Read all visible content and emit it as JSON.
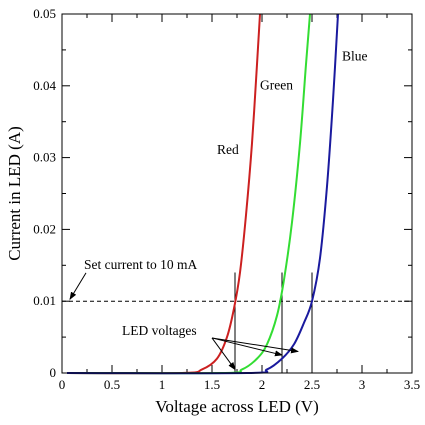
{
  "chart_data": {
    "type": "line",
    "title": "",
    "xlabel": "Voltage across LED (V)",
    "ylabel": "Current in LED (A)",
    "xlim": [
      0,
      3.5
    ],
    "ylim": [
      0,
      0.05
    ],
    "x_ticks": [
      "0",
      "0.5",
      "1",
      "1.5",
      "2",
      "2.5",
      "3",
      "3.5"
    ],
    "y_ticks": [
      "0",
      "0.01",
      "0.02",
      "0.03",
      "0.04",
      "0.05"
    ],
    "grid": false,
    "series": [
      {
        "name": "Red",
        "color": "#cc2020",
        "x": [
          1.2,
          1.4,
          1.55,
          1.65,
          1.72,
          1.78,
          1.84,
          1.9,
          1.95,
          1.98
        ],
        "y": [
          0.0,
          0.0005,
          0.002,
          0.005,
          0.009,
          0.014,
          0.022,
          0.032,
          0.043,
          0.05
        ]
      },
      {
        "name": "Green",
        "color": "#33dd33",
        "x": [
          1.6,
          1.8,
          1.95,
          2.05,
          2.15,
          2.22,
          2.3,
          2.38,
          2.44,
          2.48
        ],
        "y": [
          0.0,
          0.0005,
          0.002,
          0.004,
          0.008,
          0.013,
          0.021,
          0.032,
          0.043,
          0.05
        ]
      },
      {
        "name": "Blue",
        "color": "#1a1a9e",
        "x": [
          1.85,
          2.05,
          2.2,
          2.32,
          2.42,
          2.5,
          2.58,
          2.65,
          2.71,
          2.76
        ],
        "y": [
          0.0,
          0.0005,
          0.002,
          0.004,
          0.007,
          0.01,
          0.016,
          0.026,
          0.038,
          0.05
        ]
      }
    ],
    "reference_line": {
      "y": 0.01,
      "style": "dashed",
      "label": "Set current to 10 mA",
      "arrow_to_x": 0.05
    },
    "marker_lines": {
      "x": [
        1.73,
        2.2,
        2.5
      ],
      "from_y": 0,
      "to_y": 0.014
    },
    "annotations": {
      "led_voltages_label": "LED voltages",
      "led_voltages_label_at": {
        "x": 0.6,
        "y": 0.0053
      },
      "led_voltages_arrows_to": [
        {
          "x": 1.73,
          "y": 0.0005
        },
        {
          "x": 2.2,
          "y": 0.0025
        },
        {
          "x": 2.36,
          "y": 0.003
        }
      ],
      "set_current_label_at": {
        "x": 0.22,
        "y": 0.0145
      },
      "series_labels": [
        {
          "text": "Red",
          "at": {
            "x": 1.55,
            "y": 0.0305
          }
        },
        {
          "text": "Green",
          "at": {
            "x": 1.98,
            "y": 0.0395
          }
        },
        {
          "text": "Blue",
          "at": {
            "x": 2.8,
            "y": 0.0435
          }
        }
      ]
    }
  }
}
